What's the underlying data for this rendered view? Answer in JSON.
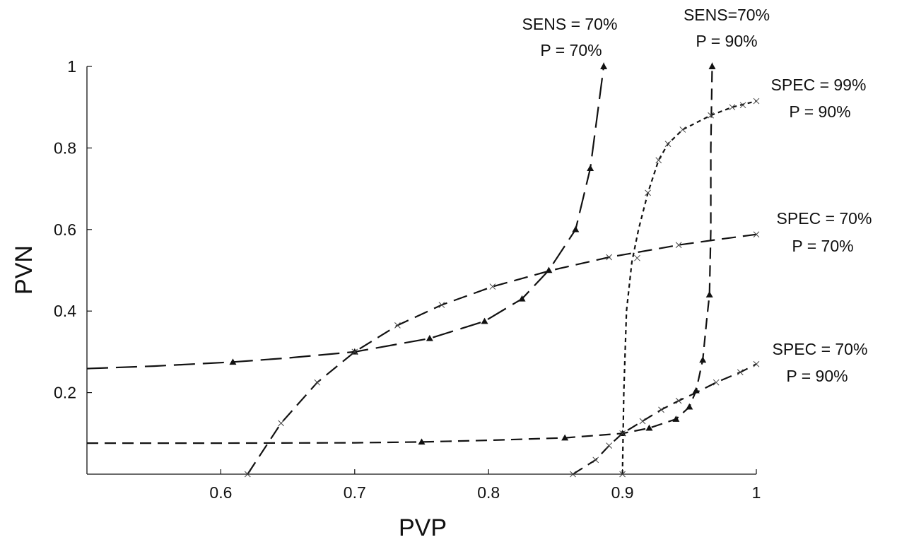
{
  "chart_data": {
    "type": "line",
    "title": "",
    "xlabel": "PVP",
    "ylabel": "PVN",
    "xlim": [
      0.5,
      1.0
    ],
    "ylim": [
      0.0,
      1.0
    ],
    "x_ticks": [
      "0.6",
      "0.7",
      "0.8",
      "0.9",
      "1"
    ],
    "y_ticks": [
      "0.2",
      "0.4",
      "0.6",
      "0.8",
      "1"
    ],
    "grid": false,
    "legend": "none",
    "series": [
      {
        "name": "SENS = 70% P = 70%",
        "marker": "triangle",
        "dash": "long",
        "points": [
          [
            0.5,
            0.259
          ],
          [
            0.55,
            0.265
          ],
          [
            0.609,
            0.275
          ],
          [
            0.65,
            0.285
          ],
          [
            0.7,
            0.3
          ],
          [
            0.756,
            0.333
          ],
          [
            0.797,
            0.375
          ],
          [
            0.825,
            0.43
          ],
          [
            0.845,
            0.5
          ],
          [
            0.865,
            0.6
          ],
          [
            0.876,
            0.75
          ],
          [
            0.882,
            0.9
          ],
          [
            0.886,
            1.0
          ]
        ],
        "markers": [
          [
            0.609,
            0.275
          ],
          [
            0.7,
            0.3
          ],
          [
            0.756,
            0.333
          ],
          [
            0.797,
            0.375
          ],
          [
            0.825,
            0.43
          ],
          [
            0.845,
            0.5
          ],
          [
            0.865,
            0.6
          ],
          [
            0.876,
            0.75
          ],
          [
            0.886,
            1.0
          ]
        ]
      },
      {
        "name": "SENS=70% P = 90%",
        "marker": "triangle",
        "dash": "medium",
        "points": [
          [
            0.5,
            0.076
          ],
          [
            0.6,
            0.076
          ],
          [
            0.7,
            0.077
          ],
          [
            0.75,
            0.079
          ],
          [
            0.8,
            0.083
          ],
          [
            0.857,
            0.089
          ],
          [
            0.9,
            0.1
          ],
          [
            0.92,
            0.113
          ],
          [
            0.94,
            0.135
          ],
          [
            0.95,
            0.165
          ],
          [
            0.955,
            0.205
          ],
          [
            0.96,
            0.28
          ],
          [
            0.963,
            0.38
          ],
          [
            0.965,
            0.44
          ],
          [
            0.966,
            0.6
          ],
          [
            0.966,
            0.8
          ],
          [
            0.967,
            1.0
          ]
        ],
        "markers": [
          [
            0.75,
            0.079
          ],
          [
            0.857,
            0.089
          ],
          [
            0.9,
            0.1
          ],
          [
            0.92,
            0.113
          ],
          [
            0.94,
            0.135
          ],
          [
            0.95,
            0.165
          ],
          [
            0.955,
            0.205
          ],
          [
            0.96,
            0.28
          ],
          [
            0.965,
            0.44
          ],
          [
            0.967,
            1.0
          ]
        ]
      },
      {
        "name": "SPEC = 99% P = 90%",
        "marker": "cross",
        "dash": "short",
        "points": [
          [
            0.9,
            0.0
          ],
          [
            0.901,
            0.2
          ],
          [
            0.903,
            0.4
          ],
          [
            0.907,
            0.52
          ],
          [
            0.912,
            0.6
          ],
          [
            0.919,
            0.69
          ],
          [
            0.927,
            0.77
          ],
          [
            0.934,
            0.81
          ],
          [
            0.945,
            0.845
          ],
          [
            0.966,
            0.88
          ],
          [
            0.982,
            0.9
          ],
          [
            1.0,
            0.915
          ]
        ],
        "markers": [
          [
            0.9,
            0.0
          ],
          [
            0.911,
            0.53
          ],
          [
            0.919,
            0.69
          ],
          [
            0.927,
            0.77
          ],
          [
            0.934,
            0.81
          ],
          [
            0.945,
            0.845
          ],
          [
            0.966,
            0.88
          ],
          [
            0.982,
            0.9
          ],
          [
            0.99,
            0.905
          ],
          [
            1.0,
            0.915
          ]
        ]
      },
      {
        "name": "SPEC = 70% P = 70%",
        "marker": "cross",
        "dash": "medium-long",
        "points": [
          [
            0.62,
            0.0
          ],
          [
            0.645,
            0.125
          ],
          [
            0.672,
            0.225
          ],
          [
            0.7,
            0.3
          ],
          [
            0.732,
            0.365
          ],
          [
            0.765,
            0.415
          ],
          [
            0.803,
            0.46
          ],
          [
            0.847,
            0.5
          ],
          [
            0.89,
            0.532
          ],
          [
            0.93,
            0.555
          ],
          [
            0.942,
            0.562
          ],
          [
            0.97,
            0.575
          ],
          [
            1.0,
            0.588
          ]
        ],
        "markers": [
          [
            0.62,
            0.0
          ],
          [
            0.645,
            0.125
          ],
          [
            0.672,
            0.225
          ],
          [
            0.7,
            0.3
          ],
          [
            0.732,
            0.365
          ],
          [
            0.765,
            0.415
          ],
          [
            0.803,
            0.46
          ],
          [
            0.89,
            0.532
          ],
          [
            0.942,
            0.562
          ],
          [
            1.0,
            0.588
          ]
        ]
      },
      {
        "name": "SPEC = 70% P = 90%",
        "marker": "cross",
        "dash": "medium",
        "points": [
          [
            0.863,
            0.0
          ],
          [
            0.88,
            0.035
          ],
          [
            0.89,
            0.07
          ],
          [
            0.9,
            0.1
          ],
          [
            0.915,
            0.13
          ],
          [
            0.929,
            0.158
          ],
          [
            0.942,
            0.18
          ],
          [
            0.955,
            0.2
          ],
          [
            0.97,
            0.225
          ],
          [
            0.988,
            0.25
          ],
          [
            1.0,
            0.27
          ]
        ],
        "markers": [
          [
            0.863,
            0.0
          ],
          [
            0.88,
            0.035
          ],
          [
            0.89,
            0.07
          ],
          [
            0.9,
            0.1
          ],
          [
            0.915,
            0.13
          ],
          [
            0.929,
            0.158
          ],
          [
            0.942,
            0.18
          ],
          [
            0.97,
            0.225
          ],
          [
            0.988,
            0.25
          ],
          [
            1.0,
            0.27
          ]
        ]
      }
    ],
    "annotations": [
      {
        "lines": [
          "SENS = 70%",
          "P = 70%"
        ]
      },
      {
        "lines": [
          "SENS=70%",
          "P = 90%"
        ]
      },
      {
        "lines": [
          "SPEC = 99%",
          "P = 90%"
        ]
      },
      {
        "lines": [
          "SPEC = 70%",
          "P = 70%"
        ]
      },
      {
        "lines": [
          "SPEC = 70%",
          "P  = 90%"
        ]
      }
    ]
  }
}
